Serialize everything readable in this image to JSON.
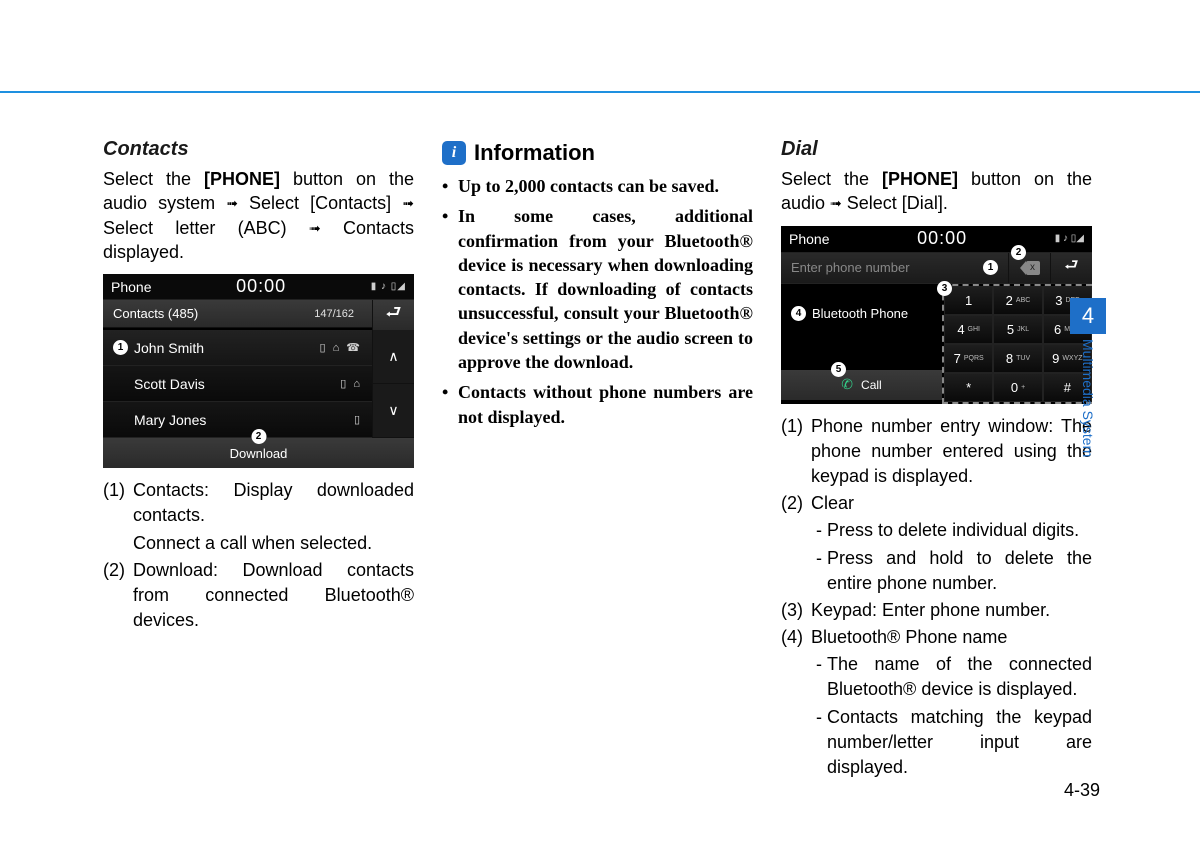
{
  "page": {
    "number": "4-39",
    "section_num": "4",
    "section_label": "Multimedia System"
  },
  "col1": {
    "title": "Contacts",
    "intro_parts": [
      "Select the ",
      "[PHONE]",
      " button on the audio system ",
      " Select [Contacts] ",
      " Select letter (ABC) ",
      " Contacts displayed."
    ],
    "screenshot": {
      "header": "Phone",
      "clock": "00:00",
      "status": "▮ ♪ ▯◢",
      "sub_left": "Contacts (485)",
      "sub_count": "147/162",
      "rows": [
        {
          "num": "1",
          "name": "John Smith",
          "icons": "▯ ⌂ ☎"
        },
        {
          "num": "",
          "name": "Scott Davis",
          "icons": "▯ ⌂"
        },
        {
          "num": "",
          "name": "Mary Jones",
          "icons": "▯"
        }
      ],
      "download_num": "2",
      "download_label": "Download"
    },
    "list": [
      {
        "n": "(1)",
        "t": "Contacts: Display downloaded contacts.",
        "extra": "Connect a call when selected."
      },
      {
        "n": "(2)",
        "t": "Download: Download contacts from connected Bluetooth® devices."
      }
    ]
  },
  "col2": {
    "info_title": "Information",
    "bullets": [
      "Up to 2,000 contacts can be saved.",
      "In some cases, additional confirmation from your Bluetooth® device is necessary when downloading contacts. If downloading of contacts unsuccessful, consult your Bluetooth® device's settings or the audio screen to approve the download.",
      "Contacts without phone numbers are not displayed."
    ]
  },
  "col3": {
    "title": "Dial",
    "intro_parts": [
      "Select the ",
      "[PHONE]",
      " button on the audio ",
      " Select [Dial]."
    ],
    "screenshot": {
      "header": "Phone",
      "clock": "00:00",
      "status": "▮ ♪ ▯◢",
      "placeholder": "Enter phone number",
      "bt_label": "Bluetooth Phone",
      "call_label": "Call",
      "keys": [
        [
          "1",
          ""
        ],
        [
          "2",
          "ABC"
        ],
        [
          "3",
          "DEF"
        ],
        [
          "4",
          "GHI"
        ],
        [
          "5",
          "JKL"
        ],
        [
          "6",
          "MNO"
        ],
        [
          "7",
          "PQRS"
        ],
        [
          "8",
          "TUV"
        ],
        [
          "9",
          "WXYZ"
        ],
        [
          "*",
          ""
        ],
        [
          "0",
          "+"
        ],
        [
          "#",
          ""
        ]
      ],
      "callouts": {
        "input": "1",
        "clear": "2",
        "keypad": "3",
        "bt": "4",
        "call": "5"
      }
    },
    "list": [
      {
        "n": "(1)",
        "t": "Phone number entry window: The phone number entered using the keypad is displayed."
      },
      {
        "n": "(2)",
        "t": "Clear",
        "dashes": [
          "Press to delete individual digits.",
          "Press and hold to delete the entire phone number."
        ]
      },
      {
        "n": "(3)",
        "t": "Keypad: Enter phone number."
      },
      {
        "n": "(4)",
        "t": "Bluetooth® Phone name",
        "dashes": [
          "The name of the connected Bluetooth® device is displayed.",
          "Contacts matching the keypad number/letter input are displayed."
        ]
      }
    ]
  }
}
